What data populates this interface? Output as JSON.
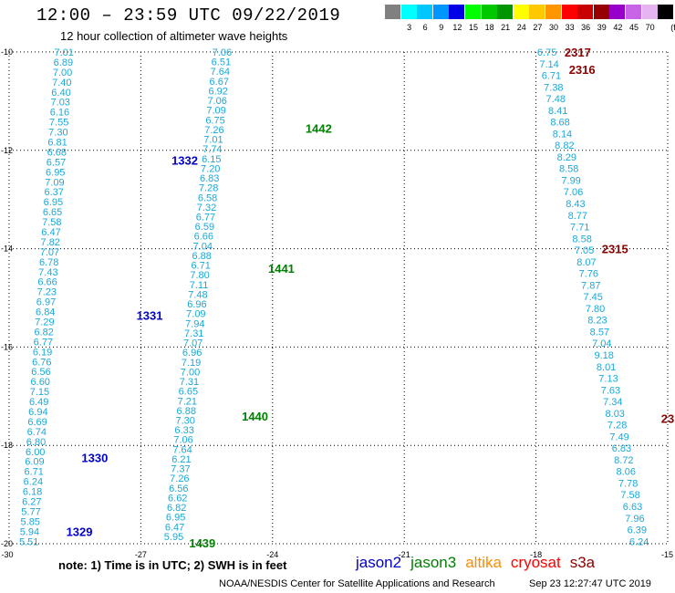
{
  "header": {
    "title": "12:00 – 23:59 UTC 09/22/2019",
    "subtitle": "12 hour collection of altimeter wave heights"
  },
  "colorbar": {
    "unit": "(ft)",
    "swatches": [
      {
        "color": "#808080",
        "label": ""
      },
      {
        "color": "#00ffff",
        "label": "3"
      },
      {
        "color": "#00c8ff",
        "label": "6"
      },
      {
        "color": "#0096ff",
        "label": "9"
      },
      {
        "color": "#0000e6",
        "label": "12"
      },
      {
        "color": "#00ff00",
        "label": "15"
      },
      {
        "color": "#00c800",
        "label": "18"
      },
      {
        "color": "#009600",
        "label": "21"
      },
      {
        "color": "#ffff00",
        "label": "24"
      },
      {
        "color": "#ffc800",
        "label": "27"
      },
      {
        "color": "#ff9600",
        "label": "30"
      },
      {
        "color": "#ff0000",
        "label": "33"
      },
      {
        "color": "#c80000",
        "label": "36"
      },
      {
        "color": "#960000",
        "label": "39"
      },
      {
        "color": "#9600c8",
        "label": "42"
      },
      {
        "color": "#c864e6",
        "label": "45"
      },
      {
        "color": "#e6b4f0",
        "label": "70"
      },
      {
        "color": "#000000",
        "label": ""
      }
    ]
  },
  "map": {
    "lon_labels": [
      "-30",
      "-27",
      "-24",
      "-21",
      "-18",
      "-15"
    ],
    "lat_labels": [
      "-10",
      "-12",
      "-14",
      "-16",
      "-18",
      "-20"
    ],
    "value_color": "#1aa8d8",
    "tracks": [
      {
        "lat_start": -10.0,
        "lat_end": -19.95,
        "lon_start": -28.75,
        "lon_end": -29.55,
        "values": [
          "7.01",
          "6.89",
          "7.00",
          "7.40",
          "6.40",
          "7.03",
          "6.16",
          "7.55",
          "7.30",
          "6.81",
          "6.68",
          "6.57",
          "6.95",
          "7.09",
          "6.37",
          "6.95",
          "6.65",
          "7.58",
          "6.47",
          "7.82",
          "7.07",
          "6.78",
          "7.43",
          "6.66",
          "7.23",
          "6.97",
          "6.84",
          "7.29",
          "6.82",
          "6.77",
          "6.19",
          "6.76",
          "6.56",
          "6.60",
          "7.15",
          "6.49",
          "6.94",
          "6.69",
          "6.74",
          "6.80",
          "6.00",
          "6.09",
          "6.71",
          "6.24",
          "6.18",
          "6.27",
          "5.77",
          "5.85",
          "5.94",
          "5.51"
        ]
      },
      {
        "lat_start": -10.0,
        "lat_end": -19.85,
        "lon_start": -25.15,
        "lon_end": -26.25,
        "values": [
          "7.06",
          "6.51",
          "7.64",
          "6.67",
          "6.92",
          "7.06",
          "7.09",
          "6.75",
          "7.26",
          "7.01",
          "7.74",
          "6.15",
          "7.20",
          "6.83",
          "7.28",
          "6.58",
          "7.32",
          "6.77",
          "6.59",
          "6.66",
          "7.04",
          "6.88",
          "6.71",
          "7.80",
          "7.11",
          "7.48",
          "6.96",
          "7.09",
          "7.94",
          "7.31",
          "7.07",
          "6.96",
          "7.19",
          "7.00",
          "7.31",
          "6.65",
          "7.21",
          "6.88",
          "7.30",
          "6.33",
          "7.06",
          "7.64",
          "6.21",
          "7.37",
          "7.26",
          "6.56",
          "6.62",
          "6.82",
          "6.95",
          "6.47",
          "5.95"
        ]
      },
      {
        "lat_start": -10.0,
        "lat_end": -19.95,
        "lon_start": -17.75,
        "lon_end": -15.65,
        "values": [
          "6.75",
          "7.14",
          "6.71",
          "7.38",
          "7.48",
          "8.41",
          "8.68",
          "8.14",
          "8.82",
          "8.29",
          "8.58",
          "7.99",
          "7.06",
          "8.43",
          "8.77",
          "7.71",
          "8.58",
          "7.05",
          "8.07",
          "7.76",
          "7.87",
          "7.45",
          "7.80",
          "8.23",
          "8.57",
          "7.04",
          "9.18",
          "8.01",
          "7.13",
          "7.63",
          "7.34",
          "8.03",
          "7.28",
          "7.49",
          "6.83",
          "8.72",
          "8.06",
          "7.78",
          "7.58",
          "6.63",
          "7.96",
          "6.39",
          "6.24"
        ]
      }
    ],
    "pass_labels": [
      {
        "text": "1332",
        "lon": -26.3,
        "lat": -12.2,
        "color": "#0000cc"
      },
      {
        "text": "1331",
        "lon": -27.1,
        "lat": -15.35,
        "color": "#0000cc"
      },
      {
        "text": "1330",
        "lon": -28.35,
        "lat": -18.25,
        "color": "#0000cc"
      },
      {
        "text": "1329",
        "lon": -28.7,
        "lat": -19.75,
        "color": "#0000cc"
      },
      {
        "text": "1442",
        "lon": -23.25,
        "lat": -11.55,
        "color": "#008000"
      },
      {
        "text": "1441",
        "lon": -24.1,
        "lat": -14.4,
        "color": "#008000"
      },
      {
        "text": "1440",
        "lon": -24.7,
        "lat": -17.4,
        "color": "#008000"
      },
      {
        "text": "1439",
        "lon": -25.9,
        "lat": -19.98,
        "color": "#008000"
      },
      {
        "text": "2317",
        "lon": -17.35,
        "lat": -10.0,
        "color": "#8b0000"
      },
      {
        "text": "2316",
        "lon": -17.25,
        "lat": -10.35,
        "color": "#8b0000"
      },
      {
        "text": "2315",
        "lon": -16.5,
        "lat": -14.0,
        "color": "#8b0000"
      },
      {
        "text": "23",
        "lon": -15.15,
        "lat": -17.45,
        "color": "#8b0000"
      }
    ]
  },
  "note": "note:  1) Time is in UTC;  2) SWH is in feet",
  "legend": [
    {
      "text": "jason2",
      "color": "#0000cc"
    },
    {
      "text": "jason3",
      "color": "#008000"
    },
    {
      "text": "altika",
      "color": "#ff8c00"
    },
    {
      "text": "cryosat",
      "color": "#ff0000"
    },
    {
      "text": "s3a",
      "color": "#8b0000"
    }
  ],
  "footer": {
    "credit": "NOAA/NESDIS Center for Satellite Applications and Research",
    "timestamp": "Sep 23 12:27:47 UTC 2019"
  }
}
